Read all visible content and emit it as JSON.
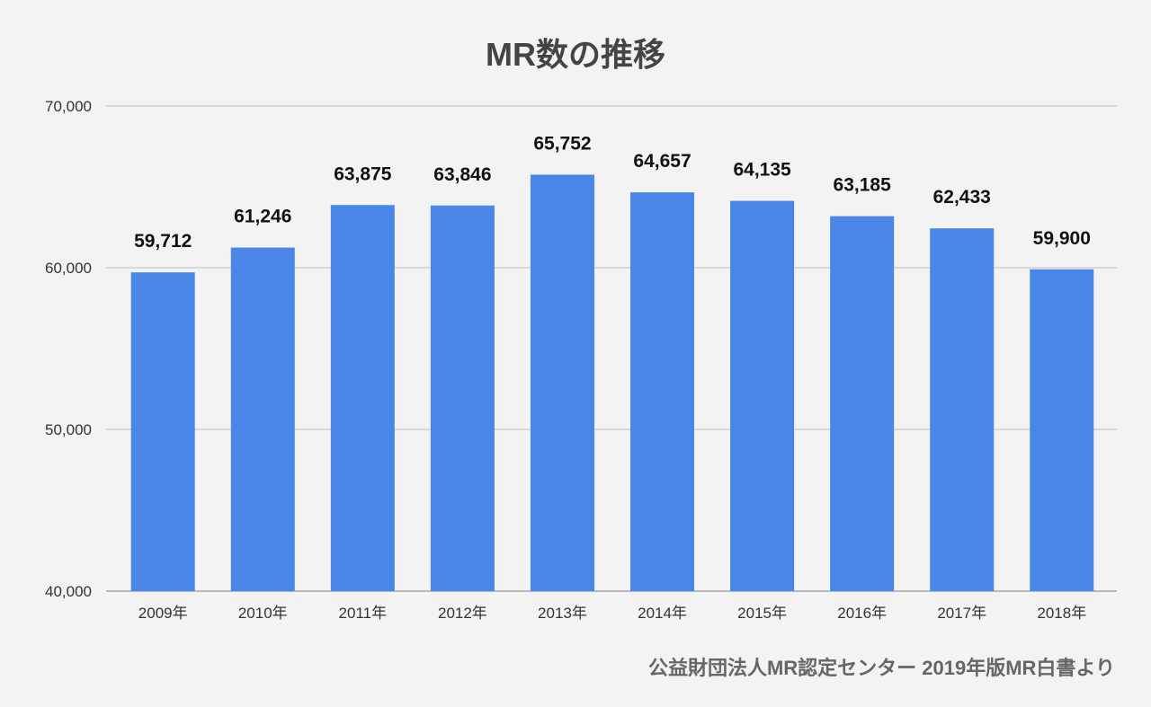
{
  "chart_data": {
    "type": "bar",
    "title": "MR数の推移",
    "categories": [
      "2009年",
      "2010年",
      "2011年",
      "2012年",
      "2013年",
      "2014年",
      "2015年",
      "2016年",
      "2017年",
      "2018年"
    ],
    "values": [
      59712,
      61246,
      63875,
      63846,
      65752,
      64657,
      64135,
      63185,
      62433,
      59900
    ],
    "data_labels": [
      "59,712",
      "61,246",
      "63,875",
      "63,846",
      "65,752",
      "64,657",
      "64,135",
      "63,185",
      "62,433",
      "59,900"
    ],
    "ylim": [
      40000,
      70000
    ],
    "yticks": [
      40000,
      50000,
      60000,
      70000
    ],
    "ytick_labels": [
      "40,000",
      "50,000",
      "60,000",
      "70,000"
    ],
    "xlabel": "",
    "ylabel": "",
    "grid": true,
    "legend": "none",
    "bar_color": "#4a86e8",
    "source_note": "公益財団法人MR認定センター 2019年版MR白書より"
  }
}
